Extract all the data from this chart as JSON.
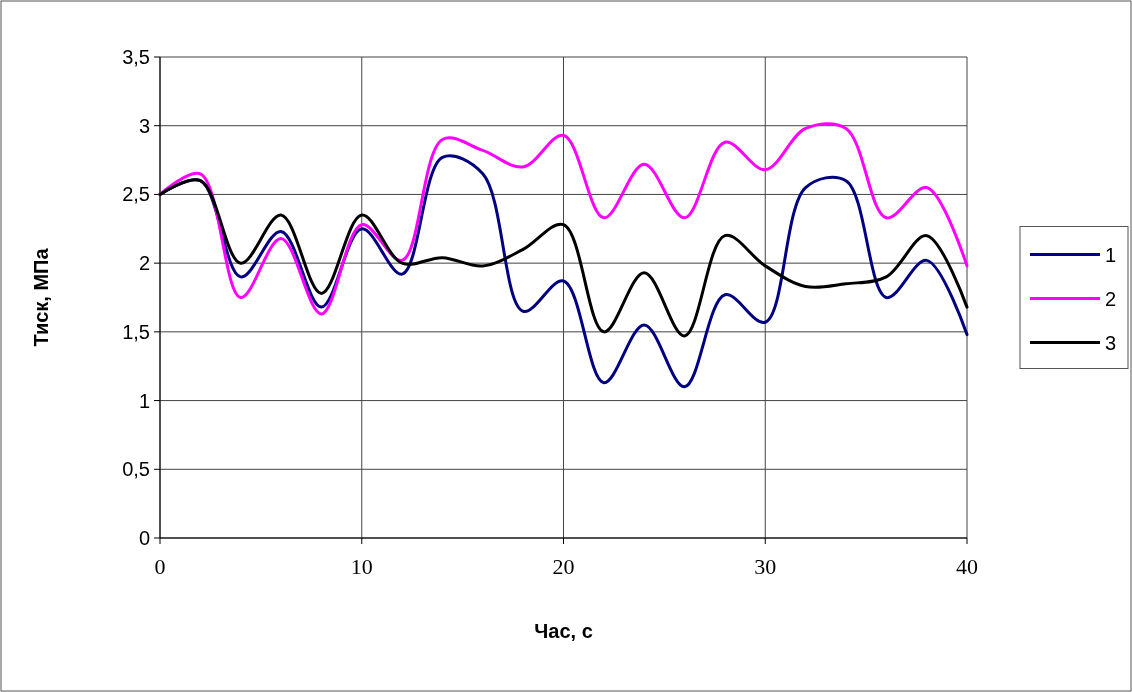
{
  "chart_data": {
    "type": "line",
    "xlabel": "Час,  с",
    "ylabel": "Тиск, МПа",
    "x": [
      0,
      2,
      4,
      6,
      8,
      10,
      12,
      14,
      16,
      18,
      20,
      22,
      24,
      26,
      28,
      30,
      32,
      34,
      36,
      38,
      40
    ],
    "series": [
      {
        "name": "1",
        "color": "#000080",
        "values": [
          2.5,
          2.6,
          1.9,
          2.23,
          1.68,
          2.25,
          1.92,
          2.77,
          2.65,
          1.65,
          1.87,
          1.13,
          1.55,
          1.1,
          1.77,
          1.57,
          2.55,
          2.6,
          1.75,
          2.02,
          1.48
        ]
      },
      {
        "name": "2",
        "color": "#ff00ff",
        "values": [
          2.5,
          2.65,
          1.75,
          2.18,
          1.63,
          2.28,
          2.02,
          2.9,
          2.82,
          2.7,
          2.93,
          2.33,
          2.72,
          2.33,
          2.88,
          2.68,
          2.98,
          2.98,
          2.33,
          2.55,
          1.98
        ]
      },
      {
        "name": "3",
        "color": "#000000",
        "values": [
          2.5,
          2.6,
          2.0,
          2.35,
          1.78,
          2.35,
          2.0,
          2.04,
          1.98,
          2.1,
          2.28,
          1.5,
          1.93,
          1.47,
          2.2,
          1.98,
          1.83,
          1.85,
          1.9,
          2.2,
          1.68
        ]
      }
    ],
    "xlim": [
      0,
      40
    ],
    "xticks": [
      0,
      10,
      20,
      30,
      40
    ],
    "ylim": [
      0,
      3.5
    ],
    "yticks": [
      {
        "value": 0,
        "label": "0"
      },
      {
        "value": 0.5,
        "label": "0,5"
      },
      {
        "value": 1,
        "label": "1"
      },
      {
        "value": 1.5,
        "label": "1,5"
      },
      {
        "value": 2,
        "label": "2"
      },
      {
        "value": 2.5,
        "label": "2,5"
      },
      {
        "value": 3,
        "label": "3"
      },
      {
        "value": 3.5,
        "label": "3,5"
      }
    ],
    "grid": true,
    "legend": "right",
    "marker": "none",
    "line_style": "solid"
  }
}
